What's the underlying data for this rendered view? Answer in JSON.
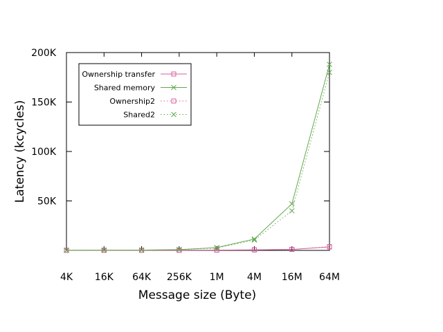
{
  "chart_data": {
    "type": "line",
    "xlabel": "Message size (Byte)",
    "ylabel": "Latency (kcycles)",
    "categories": [
      "4K",
      "16K",
      "64K",
      "256K",
      "1M",
      "4M",
      "16M",
      "64M"
    ],
    "y_ticks": [
      {
        "value": 50,
        "label": "50K"
      },
      {
        "value": 100,
        "label": "100K"
      },
      {
        "value": 150,
        "label": "150K"
      },
      {
        "value": 200,
        "label": "200K"
      }
    ],
    "ylim": [
      0,
      200
    ],
    "grid": false,
    "legend_position": "top-left",
    "series": [
      {
        "name": "Ownership transfer",
        "color": "#d65f9d",
        "marker": "square",
        "dash": "solid",
        "values": [
          0.1,
          0.1,
          0.1,
          0.2,
          0.3,
          0.5,
          1.0,
          3.5
        ]
      },
      {
        "name": "Shared memory",
        "color": "#5fa84a",
        "marker": "x",
        "dash": "solid",
        "values": [
          0.1,
          0.2,
          0.3,
          0.8,
          2.8,
          11.5,
          47,
          188
        ]
      },
      {
        "name": "Ownership2",
        "color": "#d65f9d",
        "marker": "square",
        "dash": "dotted",
        "values": [
          0.1,
          0.1,
          0.1,
          0.2,
          0.3,
          0.5,
          1.0,
          3.8
        ]
      },
      {
        "name": "Shared2",
        "color": "#5fa84a",
        "marker": "x",
        "dash": "dotted",
        "values": [
          0.1,
          0.2,
          0.3,
          0.7,
          2.4,
          10.5,
          40,
          180
        ]
      }
    ]
  }
}
